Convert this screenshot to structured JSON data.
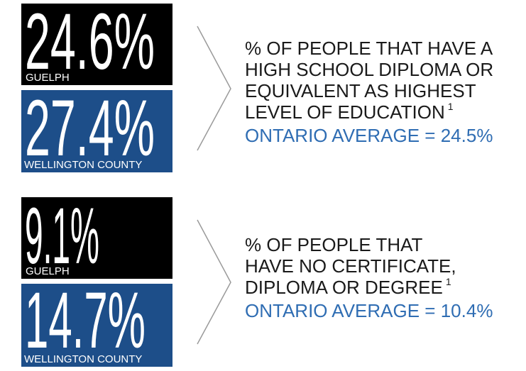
{
  "sections": [
    {
      "stats": [
        {
          "value": "24.6%",
          "region": "GUELPH"
        },
        {
          "value": "27.4%",
          "region": "WELLINGTON COUNTY"
        }
      ],
      "description": [
        "% OF PEOPLE THAT HAVE A",
        "HIGH SCHOOL DIPLOMA OR",
        "EQUIVALENT AS HIGHEST",
        "LEVEL OF EDUCATION"
      ],
      "footnote": "1",
      "ontario_average": "ONTARIO AVERAGE = 24.5%"
    },
    {
      "stats": [
        {
          "value": "9.1%",
          "region": "GUELPH"
        },
        {
          "value": "14.7%",
          "region": "WELLINGTON COUNTY"
        }
      ],
      "description": [
        "% OF PEOPLE THAT",
        "HAVE NO CERTIFICATE,",
        "DIPLOMA OR DEGREE"
      ],
      "footnote": "1",
      "ontario_average": "ONTARIO AVERAGE = 10.4%"
    }
  ]
}
